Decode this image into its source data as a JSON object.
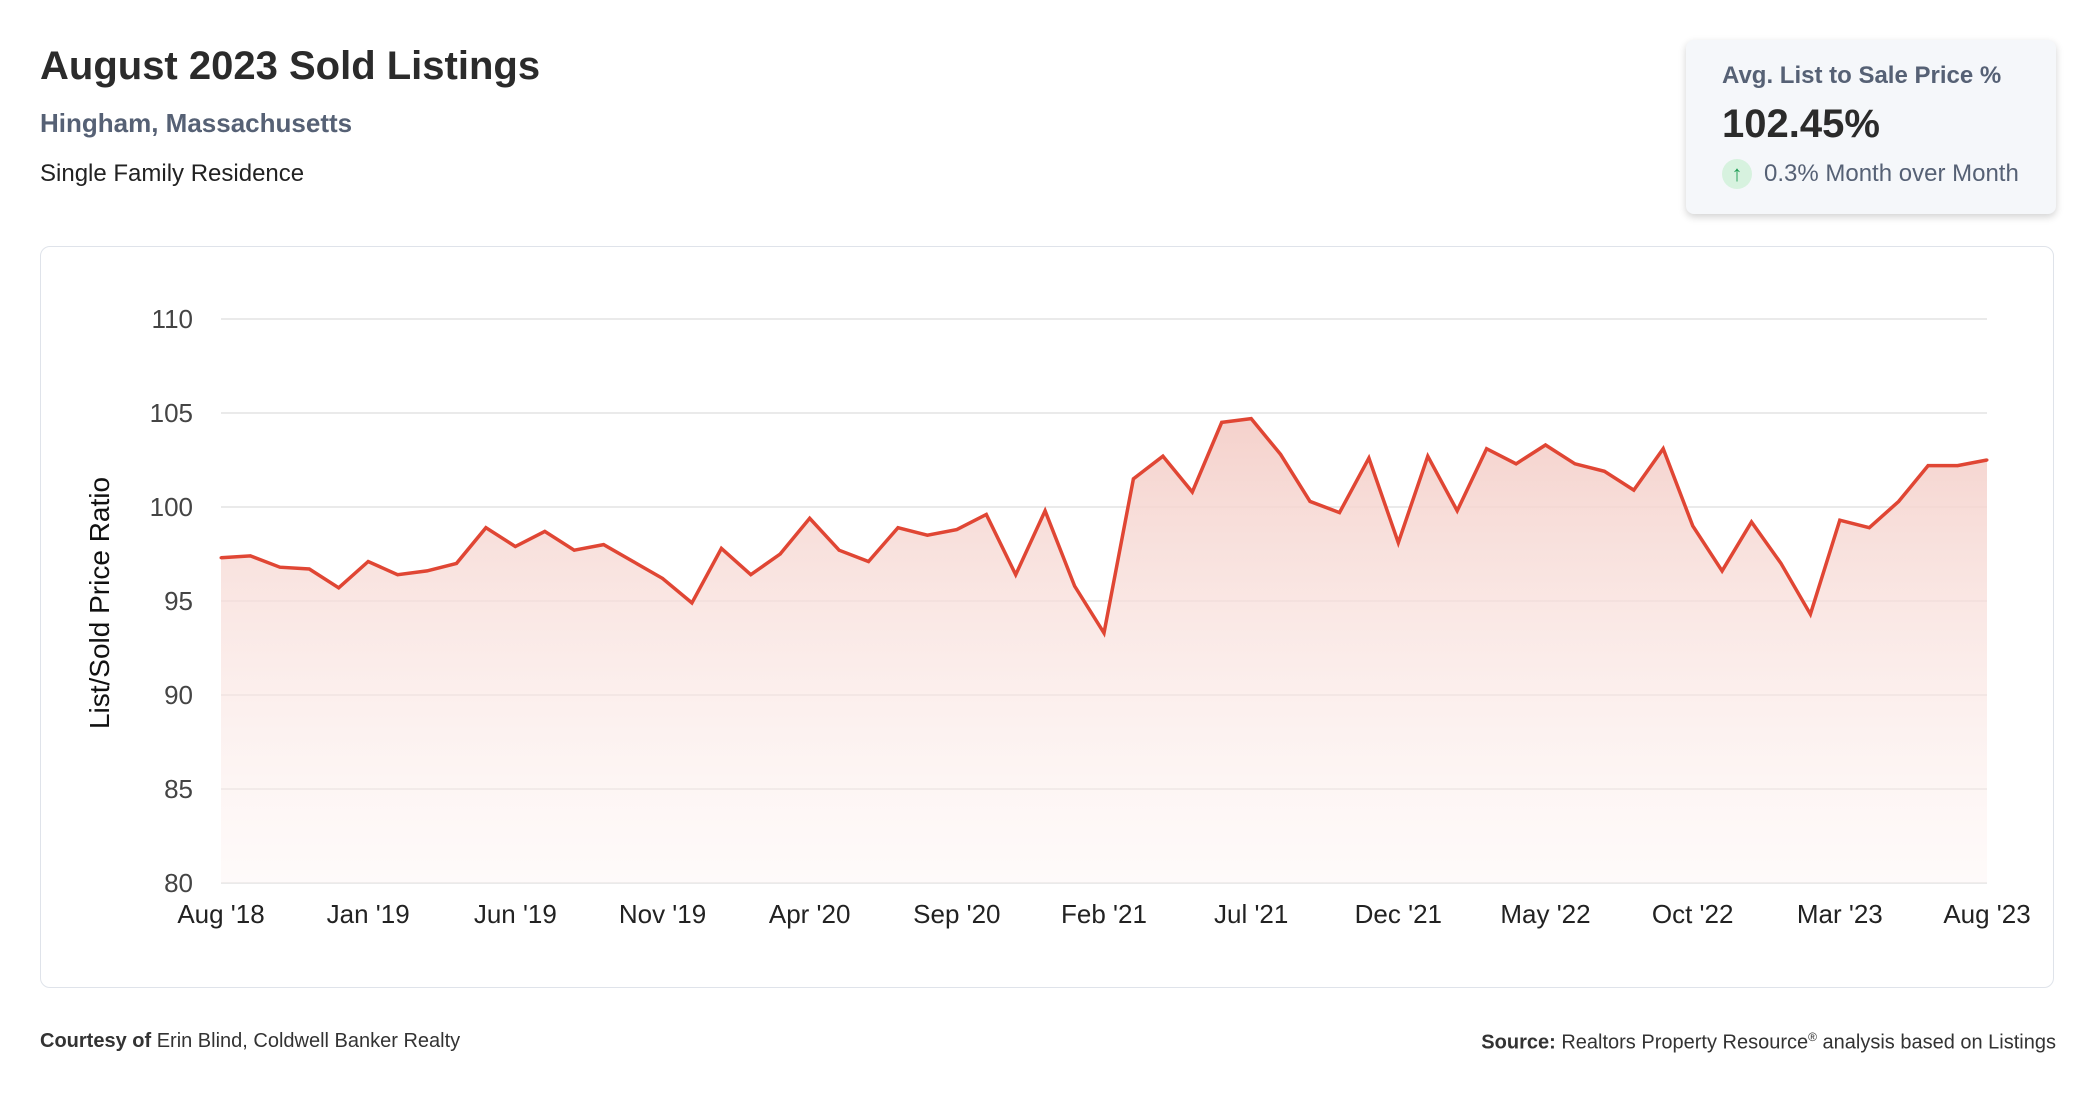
{
  "header": {
    "title": "August 2023 Sold Listings",
    "location": "Hingham, Massachusetts",
    "property_type": "Single Family Residence"
  },
  "stat_card": {
    "label": "Avg. List to Sale Price %",
    "value": "102.45%",
    "change": "0.3% Month over Month",
    "change_direction_icon": "arrow-up-icon",
    "change_color": "#1f9d55"
  },
  "chart_data": {
    "type": "area",
    "title": "",
    "xlabel": "",
    "ylabel": "List/Sold Price Ratio",
    "ylim": [
      80,
      110
    ],
    "yticks": [
      80,
      85,
      90,
      95,
      100,
      105,
      110
    ],
    "x": [
      "Aug '18",
      "Sep '18",
      "Oct '18",
      "Nov '18",
      "Dec '18",
      "Jan '19",
      "Feb '19",
      "Mar '19",
      "Apr '19",
      "May '19",
      "Jun '19",
      "Jul '19",
      "Aug '19",
      "Sep '19",
      "Oct '19",
      "Nov '19",
      "Dec '19",
      "Jan '20",
      "Feb '20",
      "Mar '20",
      "Apr '20",
      "May '20",
      "Jun '20",
      "Jul '20",
      "Aug '20",
      "Sep '20",
      "Oct '20",
      "Nov '20",
      "Dec '20",
      "Jan '21",
      "Feb '21",
      "Mar '21",
      "Apr '21",
      "May '21",
      "Jun '21",
      "Jul '21",
      "Aug '21",
      "Sep '21",
      "Oct '21",
      "Nov '21",
      "Dec '21",
      "Jan '22",
      "Feb '22",
      "Mar '22",
      "Apr '22",
      "May '22",
      "Jun '22",
      "Jul '22",
      "Aug '22",
      "Sep '22",
      "Oct '22",
      "Nov '22",
      "Dec '22",
      "Jan '23",
      "Feb '23",
      "Mar '23",
      "Apr '23",
      "May '23",
      "Jun '23",
      "Jul '23",
      "Aug '23"
    ],
    "xtick_labels": [
      "Aug '18",
      "Jan '19",
      "Jun '19",
      "Nov '19",
      "Apr '20",
      "Sep '20",
      "Feb '21",
      "Jul '21",
      "Dec '21",
      "May '22",
      "Oct '22",
      "Mar '23",
      "Aug '23"
    ],
    "series": [
      {
        "name": "",
        "values": [
          97.3,
          97.4,
          96.8,
          96.7,
          95.7,
          97.1,
          96.4,
          96.6,
          97.0,
          98.9,
          97.9,
          98.7,
          97.7,
          98.0,
          97.1,
          96.2,
          94.9,
          97.8,
          96.4,
          97.5,
          99.4,
          97.7,
          97.1,
          98.9,
          98.5,
          98.8,
          99.6,
          96.4,
          99.8,
          95.8,
          93.3,
          101.5,
          102.7,
          100.8,
          104.5,
          104.7,
          102.8,
          100.3,
          99.7,
          102.6,
          98.1,
          102.7,
          99.8,
          103.1,
          102.3,
          103.3,
          102.3,
          101.9,
          100.9,
          103.1,
          99.0,
          96.6,
          99.2,
          97.0,
          94.3,
          99.3,
          98.9,
          100.3,
          102.2,
          102.2,
          102.5
        ]
      }
    ],
    "line_color": "#e04634",
    "fill_color": "#f4cfc9",
    "grid": true,
    "legend": "none"
  },
  "footer": {
    "courtesy_label": "Courtesy of",
    "courtesy_text": "Erin Blind, Coldwell Banker Realty",
    "source_label": "Source:",
    "source_text_1": "Realtors Property Resource",
    "source_registered": "®",
    "source_text_2": "analysis based on Listings"
  }
}
